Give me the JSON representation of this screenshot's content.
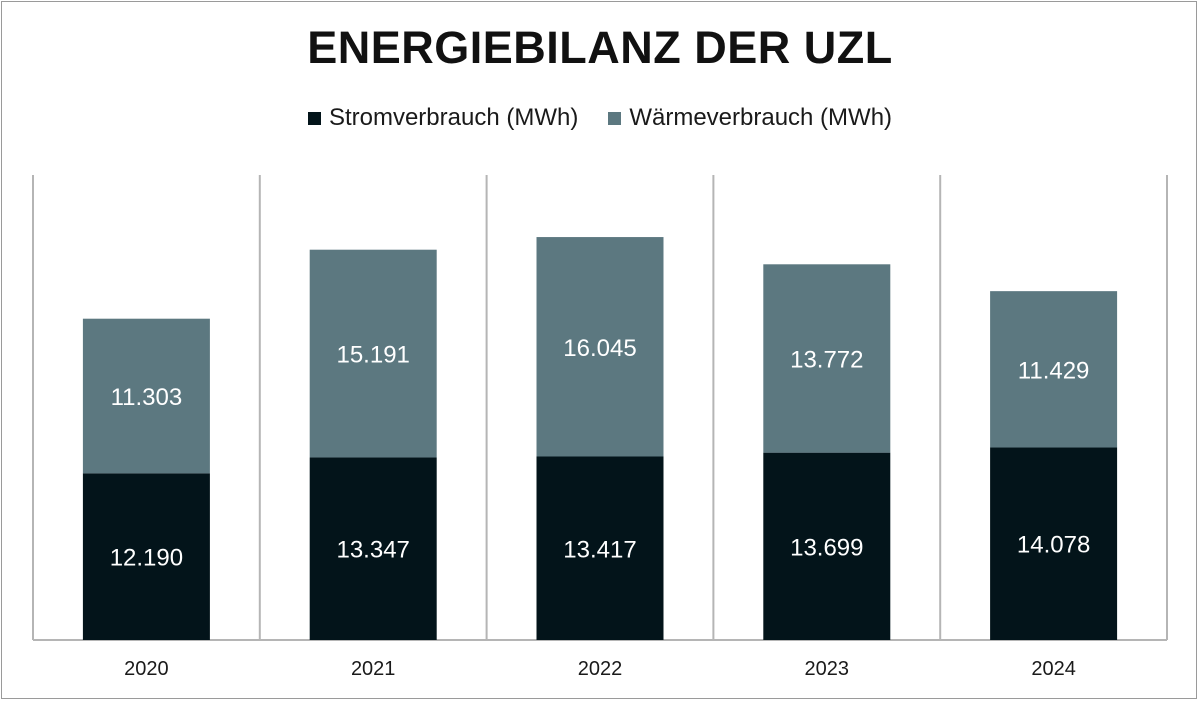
{
  "chart_data": {
    "type": "bar",
    "stacked": true,
    "title": "ENERGIEBILANZ DER UZL",
    "categories": [
      "2020",
      "2021",
      "2022",
      "2023",
      "2024"
    ],
    "series": [
      {
        "name": "Stromverbrauch (MWh)",
        "color": "#03141a",
        "values": [
          12190,
          13347,
          13417,
          13699,
          14078
        ],
        "labels": [
          "12.190",
          "13.347",
          "13.417",
          "13.699",
          "14.078"
        ]
      },
      {
        "name": "Wärmeverbrauch (MWh)",
        "color": "#5c7880",
        "values": [
          11303,
          15191,
          16045,
          13772,
          11429
        ],
        "labels": [
          "11.303",
          "15.191",
          "16.045",
          "13.772",
          "11.429"
        ]
      }
    ],
    "xlabel": "",
    "ylabel": "",
    "ylim": [
      0,
      34000
    ],
    "grid": false,
    "legend_position": "top-center"
  }
}
